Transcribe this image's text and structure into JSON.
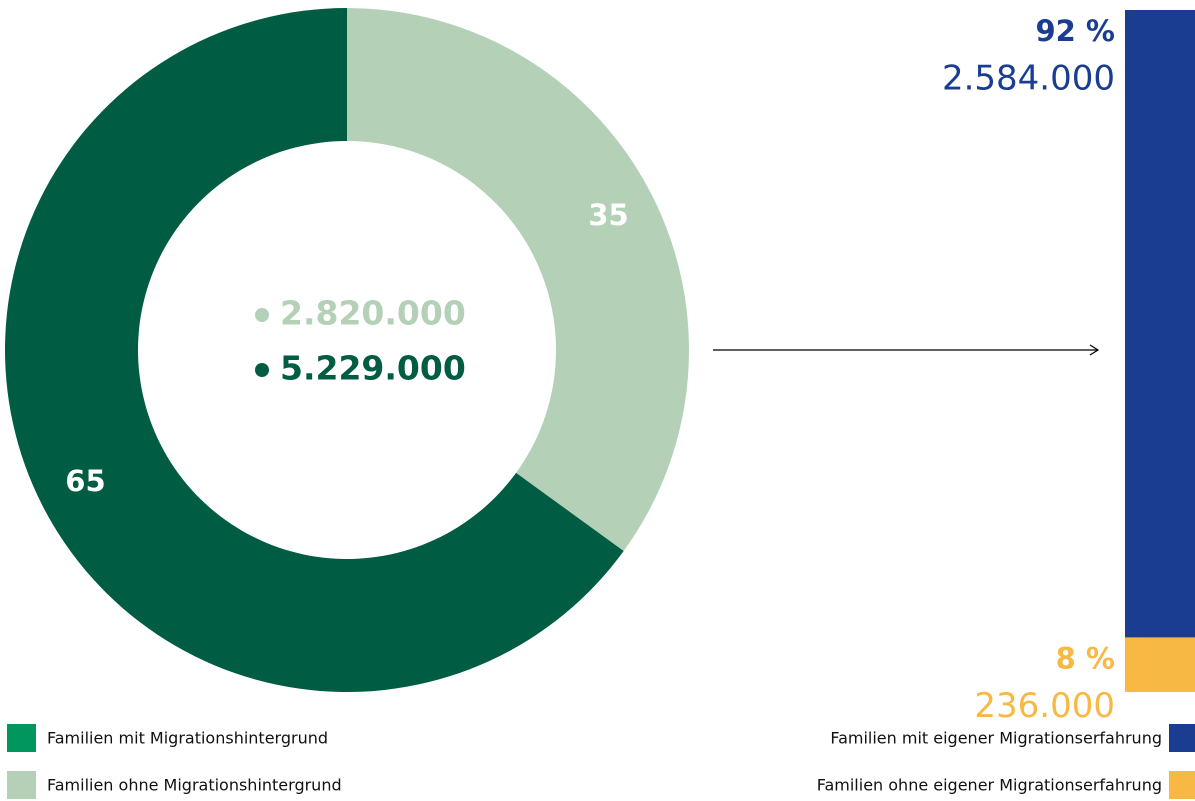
{
  "chart_data": [
    {
      "type": "donut",
      "categories": [
        "Familien mit Migrationshintergrund",
        "Familien ohne Migrationshintergrund"
      ],
      "values": [
        65,
        35
      ],
      "colors": [
        "#005c42",
        "#b4d1b8"
      ],
      "legend_colors": [
        "#00965e",
        "#b4d1b8"
      ],
      "totals": [
        5229000,
        2820000
      ],
      "total_labels": [
        "5.229.000",
        "2.820.000"
      ]
    },
    {
      "type": "stacked_bar",
      "series": [
        {
          "name": "Familien mit eigener Migrationserfahrung",
          "color": "#1a3d91",
          "values": [
            92
          ],
          "value_labels": [
            "92 %"
          ],
          "counts": [
            2584000
          ],
          "count_labels": [
            "2.584.000"
          ]
        },
        {
          "name": "Familien ohne eigener Migrationserfahrung",
          "color": "#f8b944",
          "values": [
            8
          ],
          "value_labels": [
            "8 %"
          ],
          "counts": [
            236000
          ],
          "count_labels": [
            "236.000"
          ]
        }
      ]
    }
  ]
}
